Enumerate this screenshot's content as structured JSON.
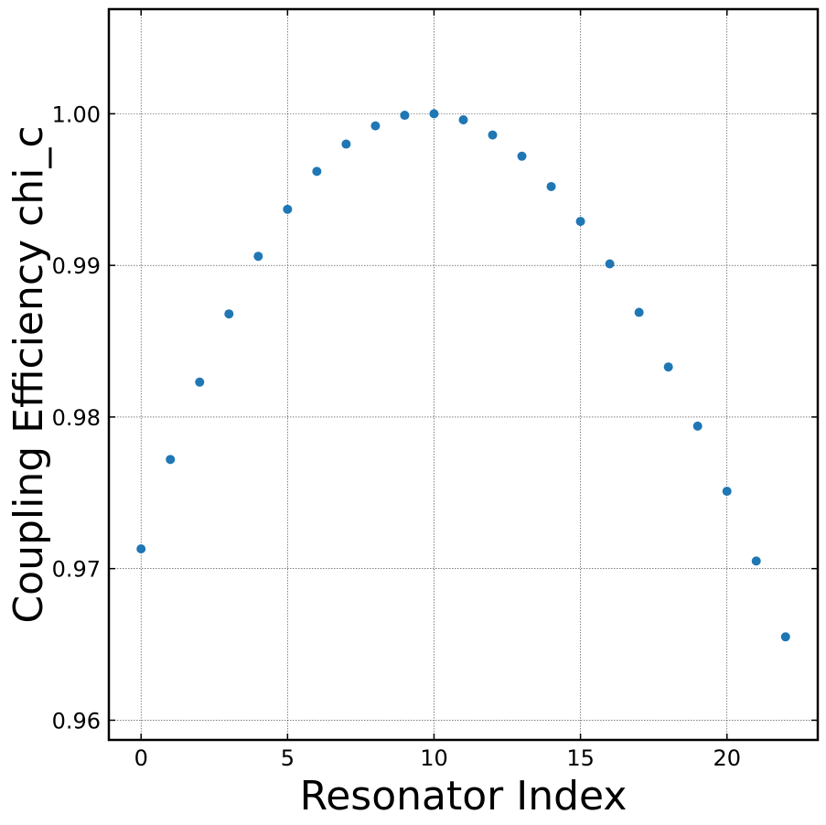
{
  "chart_data": {
    "type": "scatter",
    "xlabel": "Resonator Index",
    "ylabel": "Coupling Efficiency chi_c",
    "xlim": [
      -1.1,
      23.1
    ],
    "ylim": [
      0.9587,
      1.0069
    ],
    "xticks": [
      0,
      5,
      10,
      15,
      20
    ],
    "yticks": [
      0.96,
      0.97,
      0.98,
      0.99,
      1.0
    ],
    "xtick_labels": [
      "0",
      "5",
      "10",
      "15",
      "20"
    ],
    "ytick_labels": [
      "0.96",
      "0.97",
      "0.98",
      "0.99",
      "1.00"
    ],
    "grid": true,
    "marker_color": "#1f77b4",
    "series": [
      {
        "x": [
          0,
          1,
          2,
          3,
          4,
          5,
          6,
          7,
          8,
          9,
          10,
          11,
          12,
          13,
          14,
          15,
          16,
          17,
          18,
          19,
          20,
          21,
          22
        ],
        "y": [
          0.9713,
          0.9772,
          0.9823,
          0.9868,
          0.9906,
          0.9937,
          0.9962,
          0.998,
          0.9992,
          0.9999,
          1.0,
          0.9996,
          0.9986,
          0.9972,
          0.9952,
          0.9929,
          0.9901,
          0.9869,
          0.9833,
          0.9794,
          0.9751,
          0.9705,
          0.9655
        ]
      }
    ]
  }
}
